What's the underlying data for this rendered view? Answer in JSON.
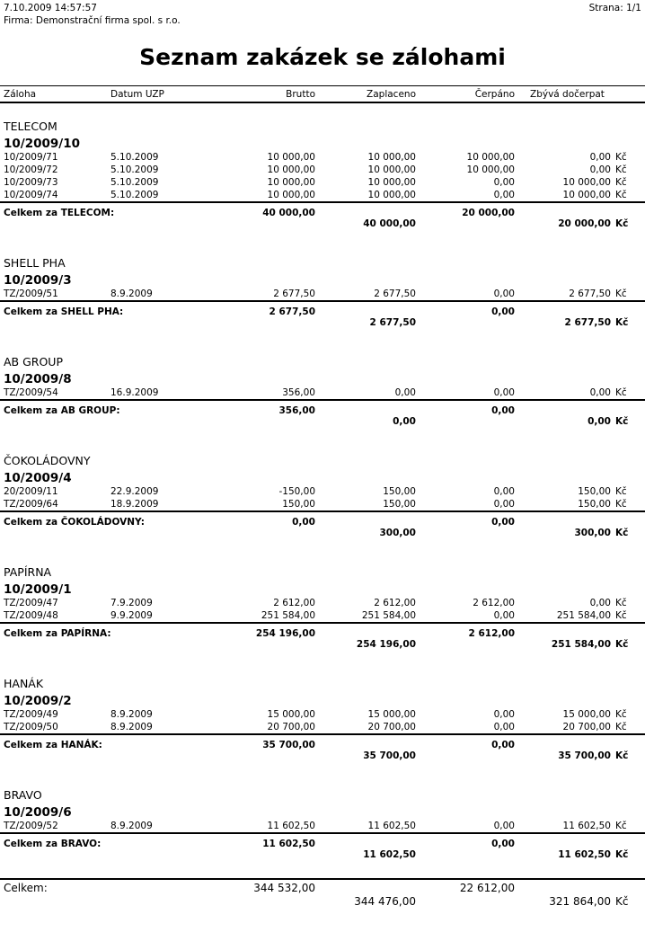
{
  "header": {
    "datetime": "7.10.2009  14:57:57",
    "page": "Strana: 1/1",
    "company": "Firma: Demonstrační firma spol. s r.o.",
    "title": "Seznam zakázek se zálohami"
  },
  "columns": [
    "Záloha",
    "Datum UZP",
    "Brutto",
    "Zaplaceno",
    "Čerpáno",
    "Zbývá dočerpat"
  ],
  "currency": "Kč",
  "groups": [
    {
      "name": "TELECOM",
      "order": "10/2009/10",
      "rows": [
        [
          "10/2009/71",
          "5.10.2009",
          "10 000,00",
          "10 000,00",
          "10 000,00",
          "0,00"
        ],
        [
          "10/2009/72",
          "5.10.2009",
          "10 000,00",
          "10 000,00",
          "10 000,00",
          "0,00"
        ],
        [
          "10/2009/73",
          "5.10.2009",
          "10 000,00",
          "10 000,00",
          "0,00",
          "10 000,00"
        ],
        [
          "10/2009/74",
          "5.10.2009",
          "10 000,00",
          "10 000,00",
          "0,00",
          "10 000,00"
        ]
      ],
      "total": {
        "label": "Celkem za TELECOM:",
        "brutto": "40 000,00",
        "zaplaceno": "40 000,00",
        "cerpano": "20 000,00",
        "zbyva": "20 000,00"
      }
    },
    {
      "name": "SHELL PHA",
      "order": "10/2009/3",
      "rows": [
        [
          "TZ/2009/51",
          "8.9.2009",
          "2 677,50",
          "2 677,50",
          "0,00",
          "2 677,50"
        ]
      ],
      "total": {
        "label": "Celkem za SHELL PHA:",
        "brutto": "2 677,50",
        "zaplaceno": "2 677,50",
        "cerpano": "0,00",
        "zbyva": "2 677,50"
      }
    },
    {
      "name": "AB GROUP",
      "order": "10/2009/8",
      "rows": [
        [
          "TZ/2009/54",
          "16.9.2009",
          "356,00",
          "0,00",
          "0,00",
          "0,00"
        ]
      ],
      "total": {
        "label": "Celkem za AB GROUP:",
        "brutto": "356,00",
        "zaplaceno": "0,00",
        "cerpano": "0,00",
        "zbyva": "0,00"
      }
    },
    {
      "name": "ČOKOLÁDOVNY",
      "order": "10/2009/4",
      "rows": [
        [
          "20/2009/11",
          "22.9.2009",
          "-150,00",
          "150,00",
          "0,00",
          "150,00"
        ],
        [
          "TZ/2009/64",
          "18.9.2009",
          "150,00",
          "150,00",
          "0,00",
          "150,00"
        ]
      ],
      "total": {
        "label": "Celkem za ČOKOLÁDOVNY:",
        "brutto": "0,00",
        "zaplaceno": "300,00",
        "cerpano": "0,00",
        "zbyva": "300,00"
      }
    },
    {
      "name": "PAPÍRNA",
      "order": "10/2009/1",
      "rows": [
        [
          "TZ/2009/47",
          "7.9.2009",
          "2 612,00",
          "2 612,00",
          "2 612,00",
          "0,00"
        ],
        [
          "TZ/2009/48",
          "9.9.2009",
          "251 584,00",
          "251 584,00",
          "0,00",
          "251 584,00"
        ]
      ],
      "total": {
        "label": "Celkem za PAPÍRNA:",
        "brutto": "254 196,00",
        "zaplaceno": "254 196,00",
        "cerpano": "2 612,00",
        "zbyva": "251 584,00"
      }
    },
    {
      "name": "HANÁK",
      "order": "10/2009/2",
      "rows": [
        [
          "TZ/2009/49",
          "8.9.2009",
          "15 000,00",
          "15 000,00",
          "0,00",
          "15 000,00"
        ],
        [
          "TZ/2009/50",
          "8.9.2009",
          "20 700,00",
          "20 700,00",
          "0,00",
          "20 700,00"
        ]
      ],
      "total": {
        "label": "Celkem za HANÁK:",
        "brutto": "35 700,00",
        "zaplaceno": "35 700,00",
        "cerpano": "0,00",
        "zbyva": "35 700,00"
      }
    },
    {
      "name": "BRAVO",
      "order": "10/2009/6",
      "rows": [
        [
          "TZ/2009/52",
          "8.9.2009",
          "11 602,50",
          "11 602,50",
          "0,00",
          "11 602,50"
        ]
      ],
      "total": {
        "label": "Celkem za BRAVO:",
        "brutto": "11 602,50",
        "zaplaceno": "11 602,50",
        "cerpano": "0,00",
        "zbyva": "11 602,50"
      }
    }
  ],
  "grand_total": {
    "label": "Celkem:",
    "brutto": "344 532,00",
    "zaplaceno": "344 476,00",
    "cerpano": "22 612,00",
    "zbyva": "321 864,00"
  }
}
